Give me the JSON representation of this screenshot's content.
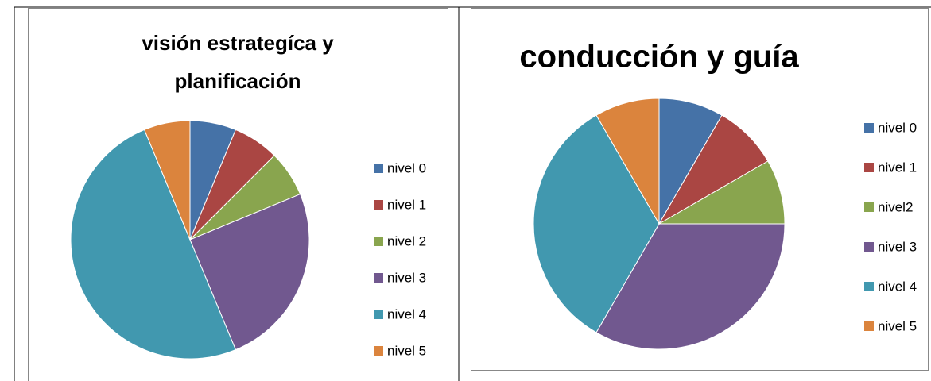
{
  "chart_data": [
    {
      "type": "pie",
      "title": [
        "visión estrategíca y",
        "planificación"
      ],
      "categories": [
        "nivel 0",
        "nivel 1",
        "nivel 2",
        "nivel 3",
        "nivel 4",
        "nivel 5"
      ],
      "values": [
        1,
        1,
        1,
        4,
        8,
        1
      ],
      "colors": [
        "#4572a7",
        "#aa4643",
        "#89a54e",
        "#71588f",
        "#4198af",
        "#db843d"
      ],
      "legend": "right"
    },
    {
      "type": "pie",
      "title": [
        "conducción y guía"
      ],
      "categories": [
        "nivel 0",
        "nivel 1",
        "nivel2",
        "nivel 3",
        "nivel 4",
        "nivel 5"
      ],
      "values": [
        1,
        1,
        1,
        4,
        4,
        1
      ],
      "colors": [
        "#4572a7",
        "#aa4643",
        "#89a54e",
        "#71588f",
        "#4198af",
        "#db843d"
      ],
      "legend": "right"
    }
  ]
}
